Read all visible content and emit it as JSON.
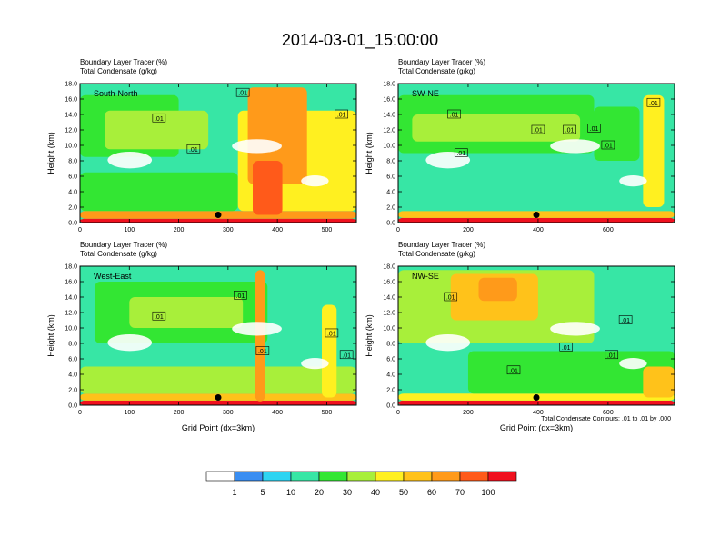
{
  "main_title": "2014-03-01_15:00:00",
  "panels": [
    {
      "panel_label": "South-North",
      "label_line1": "Boundary Layer Tracer   (%)",
      "label_line2": "Total Condensate   (g/kg)",
      "ylabel": "Height (km)",
      "xlabel": "",
      "x_ticks": [
        "0",
        "100",
        "200",
        "300",
        "400",
        "500"
      ],
      "y_ticks": [
        "0.0",
        "2.0",
        "4.0",
        "6.0",
        "8.0",
        "10.0",
        "12.0",
        "14.0",
        "16.0",
        "18.0"
      ],
      "contour_labels": [
        ".01",
        ".01",
        ".01",
        ".01"
      ]
    },
    {
      "panel_label": "SW-NE",
      "label_line1": "Boundary Layer Tracer   (%)",
      "label_line2": "Total Condensate   (g/kg)",
      "ylabel": "Height (km)",
      "xlabel": "",
      "x_ticks": [
        "0",
        "200",
        "400",
        "600"
      ],
      "y_ticks": [
        "0.0",
        "2.0",
        "4.0",
        "6.0",
        "8.0",
        "10.0",
        "12.0",
        "14.0",
        "16.0",
        "18.0"
      ],
      "contour_labels": [
        ".01",
        ".01",
        ".01",
        ".01",
        ".01",
        ".01",
        ".01"
      ]
    },
    {
      "panel_label": "West-East",
      "label_line1": "Boundary Layer Tracer   (%)",
      "label_line2": "Total Condensate   (g/kg)",
      "ylabel": "Height (km)",
      "xlabel": "Grid Point (dx=3km)",
      "x_ticks": [
        "0",
        "100",
        "200",
        "300",
        "400",
        "500"
      ],
      "y_ticks": [
        "0.0",
        "2.0",
        "4.0",
        "6.0",
        "8.0",
        "10.0",
        "12.0",
        "14.0",
        "16.0",
        "18.0"
      ],
      "contour_labels": [
        ".01",
        ".01",
        ".01",
        ".01",
        ".01"
      ]
    },
    {
      "panel_label": "NW-SE",
      "label_line1": "Boundary Layer Tracer   (%)",
      "label_line2": "Total Condensate   (g/kg)",
      "ylabel": "Height (km)",
      "xlabel": "Grid Point (dx=3km)",
      "x_ticks": [
        "0",
        "200",
        "400",
        "600"
      ],
      "y_ticks": [
        "0.0",
        "2.0",
        "4.0",
        "6.0",
        "8.0",
        "10.0",
        "12.0",
        "14.0",
        "16.0",
        "18.0"
      ],
      "contour_labels": [
        ".01",
        ".01",
        ".01",
        ".01",
        ".01"
      ],
      "footnote": "Total Condensate Contours: .01 to .01 by .000"
    }
  ],
  "colorbar": {
    "labels": [
      "1",
      "5",
      "10",
      "20",
      "30",
      "40",
      "50",
      "60",
      "70",
      "100"
    ],
    "colors": [
      "#ffffff",
      "#3a8ef2",
      "#2ed4f2",
      "#37e6a5",
      "#33e633",
      "#a8ef3a",
      "#fff020",
      "#ffc21a",
      "#ff9a1a",
      "#ff5a1a",
      "#f0101e"
    ]
  },
  "chart_data": [
    {
      "type": "heatmap",
      "panel": "South-North",
      "xlim": [
        0,
        560
      ],
      "ylim": [
        0.0,
        18.0
      ],
      "xlabel": "",
      "ylabel": "Height (km)",
      "marker": {
        "x": 280,
        "y": 1.0
      },
      "regions": [
        {
          "x0": 0,
          "x1": 560,
          "y0": 0.0,
          "y1": 0.5,
          "level": 10
        },
        {
          "x0": 0,
          "x1": 560,
          "y0": 0.5,
          "y1": 1.5,
          "level": 8
        },
        {
          "x0": 0,
          "x1": 80,
          "y0": 1.5,
          "y1": 3.5,
          "level": 7
        },
        {
          "x0": 0,
          "x1": 200,
          "y0": 8.5,
          "y1": 16.5,
          "level": 4
        },
        {
          "x0": 50,
          "x1": 260,
          "y0": 9.5,
          "y1": 14.5,
          "level": 5
        },
        {
          "x0": 0,
          "x1": 320,
          "y0": 1.5,
          "y1": 6.5,
          "level": 4
        },
        {
          "x0": 320,
          "x1": 560,
          "y0": 1.5,
          "y1": 14.5,
          "level": 6
        },
        {
          "x0": 340,
          "x1": 460,
          "y0": 5.0,
          "y1": 17.5,
          "level": 8
        },
        {
          "x0": 350,
          "x1": 410,
          "y0": 1.0,
          "y1": 8.0,
          "level": 9
        }
      ],
      "contour_labels_at": [
        {
          "x": 160,
          "y": 13.5
        },
        {
          "x": 230,
          "y": 9.5
        },
        {
          "x": 330,
          "y": 16.8
        },
        {
          "x": 530,
          "y": 14.0
        }
      ]
    },
    {
      "type": "heatmap",
      "panel": "SW-NE",
      "xlim": [
        0,
        790
      ],
      "ylim": [
        0.0,
        18.0
      ],
      "xlabel": "",
      "ylabel": "Height (km)",
      "marker": {
        "x": 395,
        "y": 1.0
      },
      "regions": [
        {
          "x0": 0,
          "x1": 790,
          "y0": 0.0,
          "y1": 0.6,
          "level": 10
        },
        {
          "x0": 0,
          "x1": 790,
          "y0": 0.6,
          "y1": 1.5,
          "level": 7
        },
        {
          "x0": 0,
          "x1": 560,
          "y0": 9.0,
          "y1": 16.5,
          "level": 4
        },
        {
          "x0": 40,
          "x1": 520,
          "y0": 10.5,
          "y1": 14.0,
          "level": 5
        },
        {
          "x0": 0,
          "x1": 790,
          "y0": 1.5,
          "y1": 5.0,
          "level": 3
        },
        {
          "x0": 700,
          "x1": 760,
          "y0": 2.0,
          "y1": 16.5,
          "level": 6
        },
        {
          "x0": 560,
          "x1": 690,
          "y0": 8.0,
          "y1": 15.0,
          "level": 4
        }
      ],
      "contour_labels_at": [
        {
          "x": 160,
          "y": 14.0
        },
        {
          "x": 180,
          "y": 9.0
        },
        {
          "x": 400,
          "y": 12.0
        },
        {
          "x": 490,
          "y": 12.0
        },
        {
          "x": 560,
          "y": 12.2
        },
        {
          "x": 600,
          "y": 10.0
        },
        {
          "x": 730,
          "y": 15.5
        }
      ]
    },
    {
      "type": "heatmap",
      "panel": "West-East",
      "xlim": [
        0,
        560
      ],
      "ylim": [
        0.0,
        18.0
      ],
      "xlabel": "Grid Point (dx=3km)",
      "ylabel": "Height (km)",
      "marker": {
        "x": 280,
        "y": 1.0
      },
      "regions": [
        {
          "x0": 0,
          "x1": 560,
          "y0": 0.0,
          "y1": 0.6,
          "level": 10
        },
        {
          "x0": 0,
          "x1": 560,
          "y0": 0.6,
          "y1": 1.5,
          "level": 7
        },
        {
          "x0": 0,
          "x1": 560,
          "y0": 1.5,
          "y1": 5.0,
          "level": 5
        },
        {
          "x0": 30,
          "x1": 380,
          "y0": 8.0,
          "y1": 16.0,
          "level": 4
        },
        {
          "x0": 100,
          "x1": 330,
          "y0": 10.0,
          "y1": 14.0,
          "level": 5
        },
        {
          "x0": 355,
          "x1": 375,
          "y0": 0.5,
          "y1": 17.5,
          "level": 8
        },
        {
          "x0": 490,
          "x1": 520,
          "y0": 1.0,
          "y1": 13.0,
          "level": 6
        }
      ],
      "contour_labels_at": [
        {
          "x": 160,
          "y": 11.5
        },
        {
          "x": 325,
          "y": 14.2
        },
        {
          "x": 370,
          "y": 7.0
        },
        {
          "x": 510,
          "y": 9.3
        },
        {
          "x": 540,
          "y": 6.5
        }
      ]
    },
    {
      "type": "heatmap",
      "panel": "NW-SE",
      "xlim": [
        0,
        790
      ],
      "ylim": [
        0.0,
        18.0
      ],
      "xlabel": "Grid Point (dx=3km)",
      "ylabel": "Height (km)",
      "marker": {
        "x": 395,
        "y": 1.0
      },
      "regions": [
        {
          "x0": 0,
          "x1": 790,
          "y0": 0.0,
          "y1": 0.6,
          "level": 10
        },
        {
          "x0": 0,
          "x1": 790,
          "y0": 0.6,
          "y1": 1.5,
          "level": 6
        },
        {
          "x0": 0,
          "x1": 560,
          "y0": 8.0,
          "y1": 17.5,
          "level": 5
        },
        {
          "x0": 150,
          "x1": 400,
          "y0": 11.0,
          "y1": 17.0,
          "level": 7
        },
        {
          "x0": 230,
          "x1": 340,
          "y0": 13.5,
          "y1": 16.5,
          "level": 8
        },
        {
          "x0": 200,
          "x1": 790,
          "y0": 1.5,
          "y1": 7.0,
          "level": 4
        },
        {
          "x0": 700,
          "x1": 790,
          "y0": 1.0,
          "y1": 5.0,
          "level": 7
        }
      ],
      "contour_labels_at": [
        {
          "x": 150,
          "y": 14.0
        },
        {
          "x": 330,
          "y": 4.5
        },
        {
          "x": 480,
          "y": 7.5
        },
        {
          "x": 610,
          "y": 6.5
        },
        {
          "x": 650,
          "y": 11.0
        }
      ]
    }
  ]
}
